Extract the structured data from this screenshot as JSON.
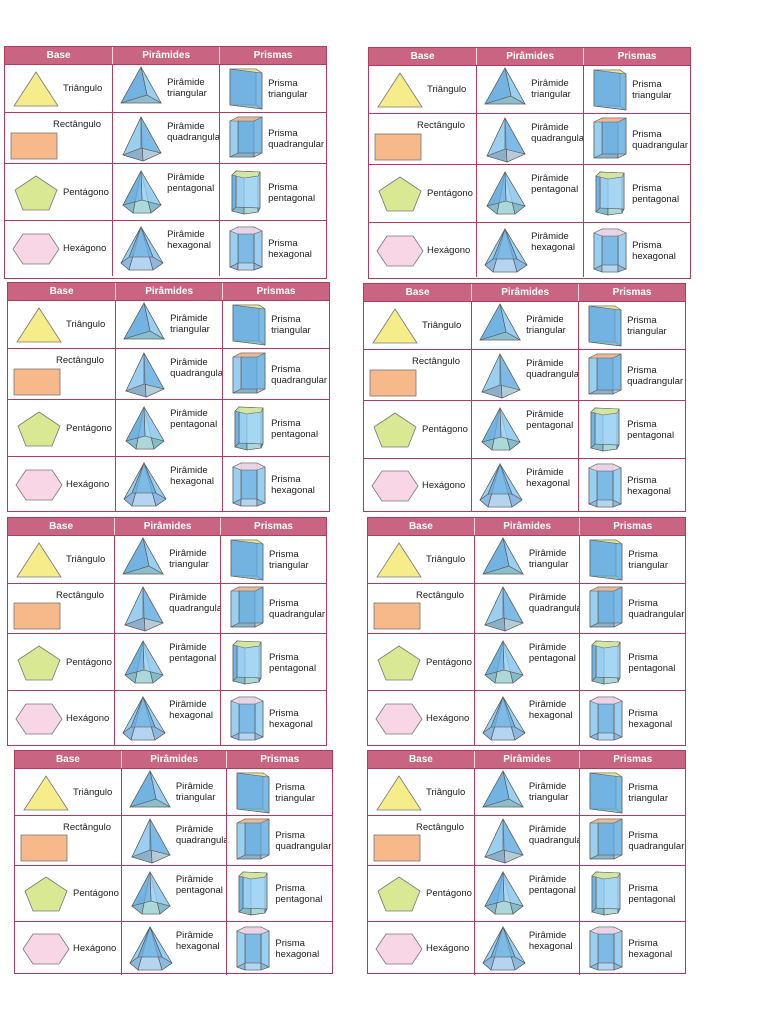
{
  "headers": {
    "base": "Base",
    "pyramids": "Pirâmides",
    "prisms": "Prismas"
  },
  "rows": [
    {
      "key": "tri",
      "base": "Triângulo",
      "pyramid": [
        "Pirâmide",
        "triangular"
      ],
      "prism": [
        "Prisma",
        "triangular"
      ],
      "color": "#f7ec8a"
    },
    {
      "key": "rect",
      "base": "Rectângulo",
      "pyramid": [
        "Pirâmide",
        "quadrangular"
      ],
      "prism": [
        "Prisma",
        "quadrangular"
      ],
      "color": "#f8b98a"
    },
    {
      "key": "pent",
      "base": "Pentágono",
      "pyramid": [
        "Pirâmide",
        "pentagonal"
      ],
      "prism": [
        "Prisma",
        "pentagonal"
      ],
      "color": "#d8e893"
    },
    {
      "key": "hex",
      "base": "Hexágono",
      "pyramid": [
        "Pirâmide",
        "hexagonal"
      ],
      "prism": [
        "Prisma",
        "hexagonal"
      ],
      "color": "#f8d6e6"
    }
  ],
  "cards": [
    {},
    {},
    {},
    {},
    {},
    {},
    {},
    {}
  ],
  "colors": {
    "header": "#c96582",
    "border": "#b33a5a",
    "face": "#9fd3f2",
    "faceDark": "#6aaedf"
  }
}
